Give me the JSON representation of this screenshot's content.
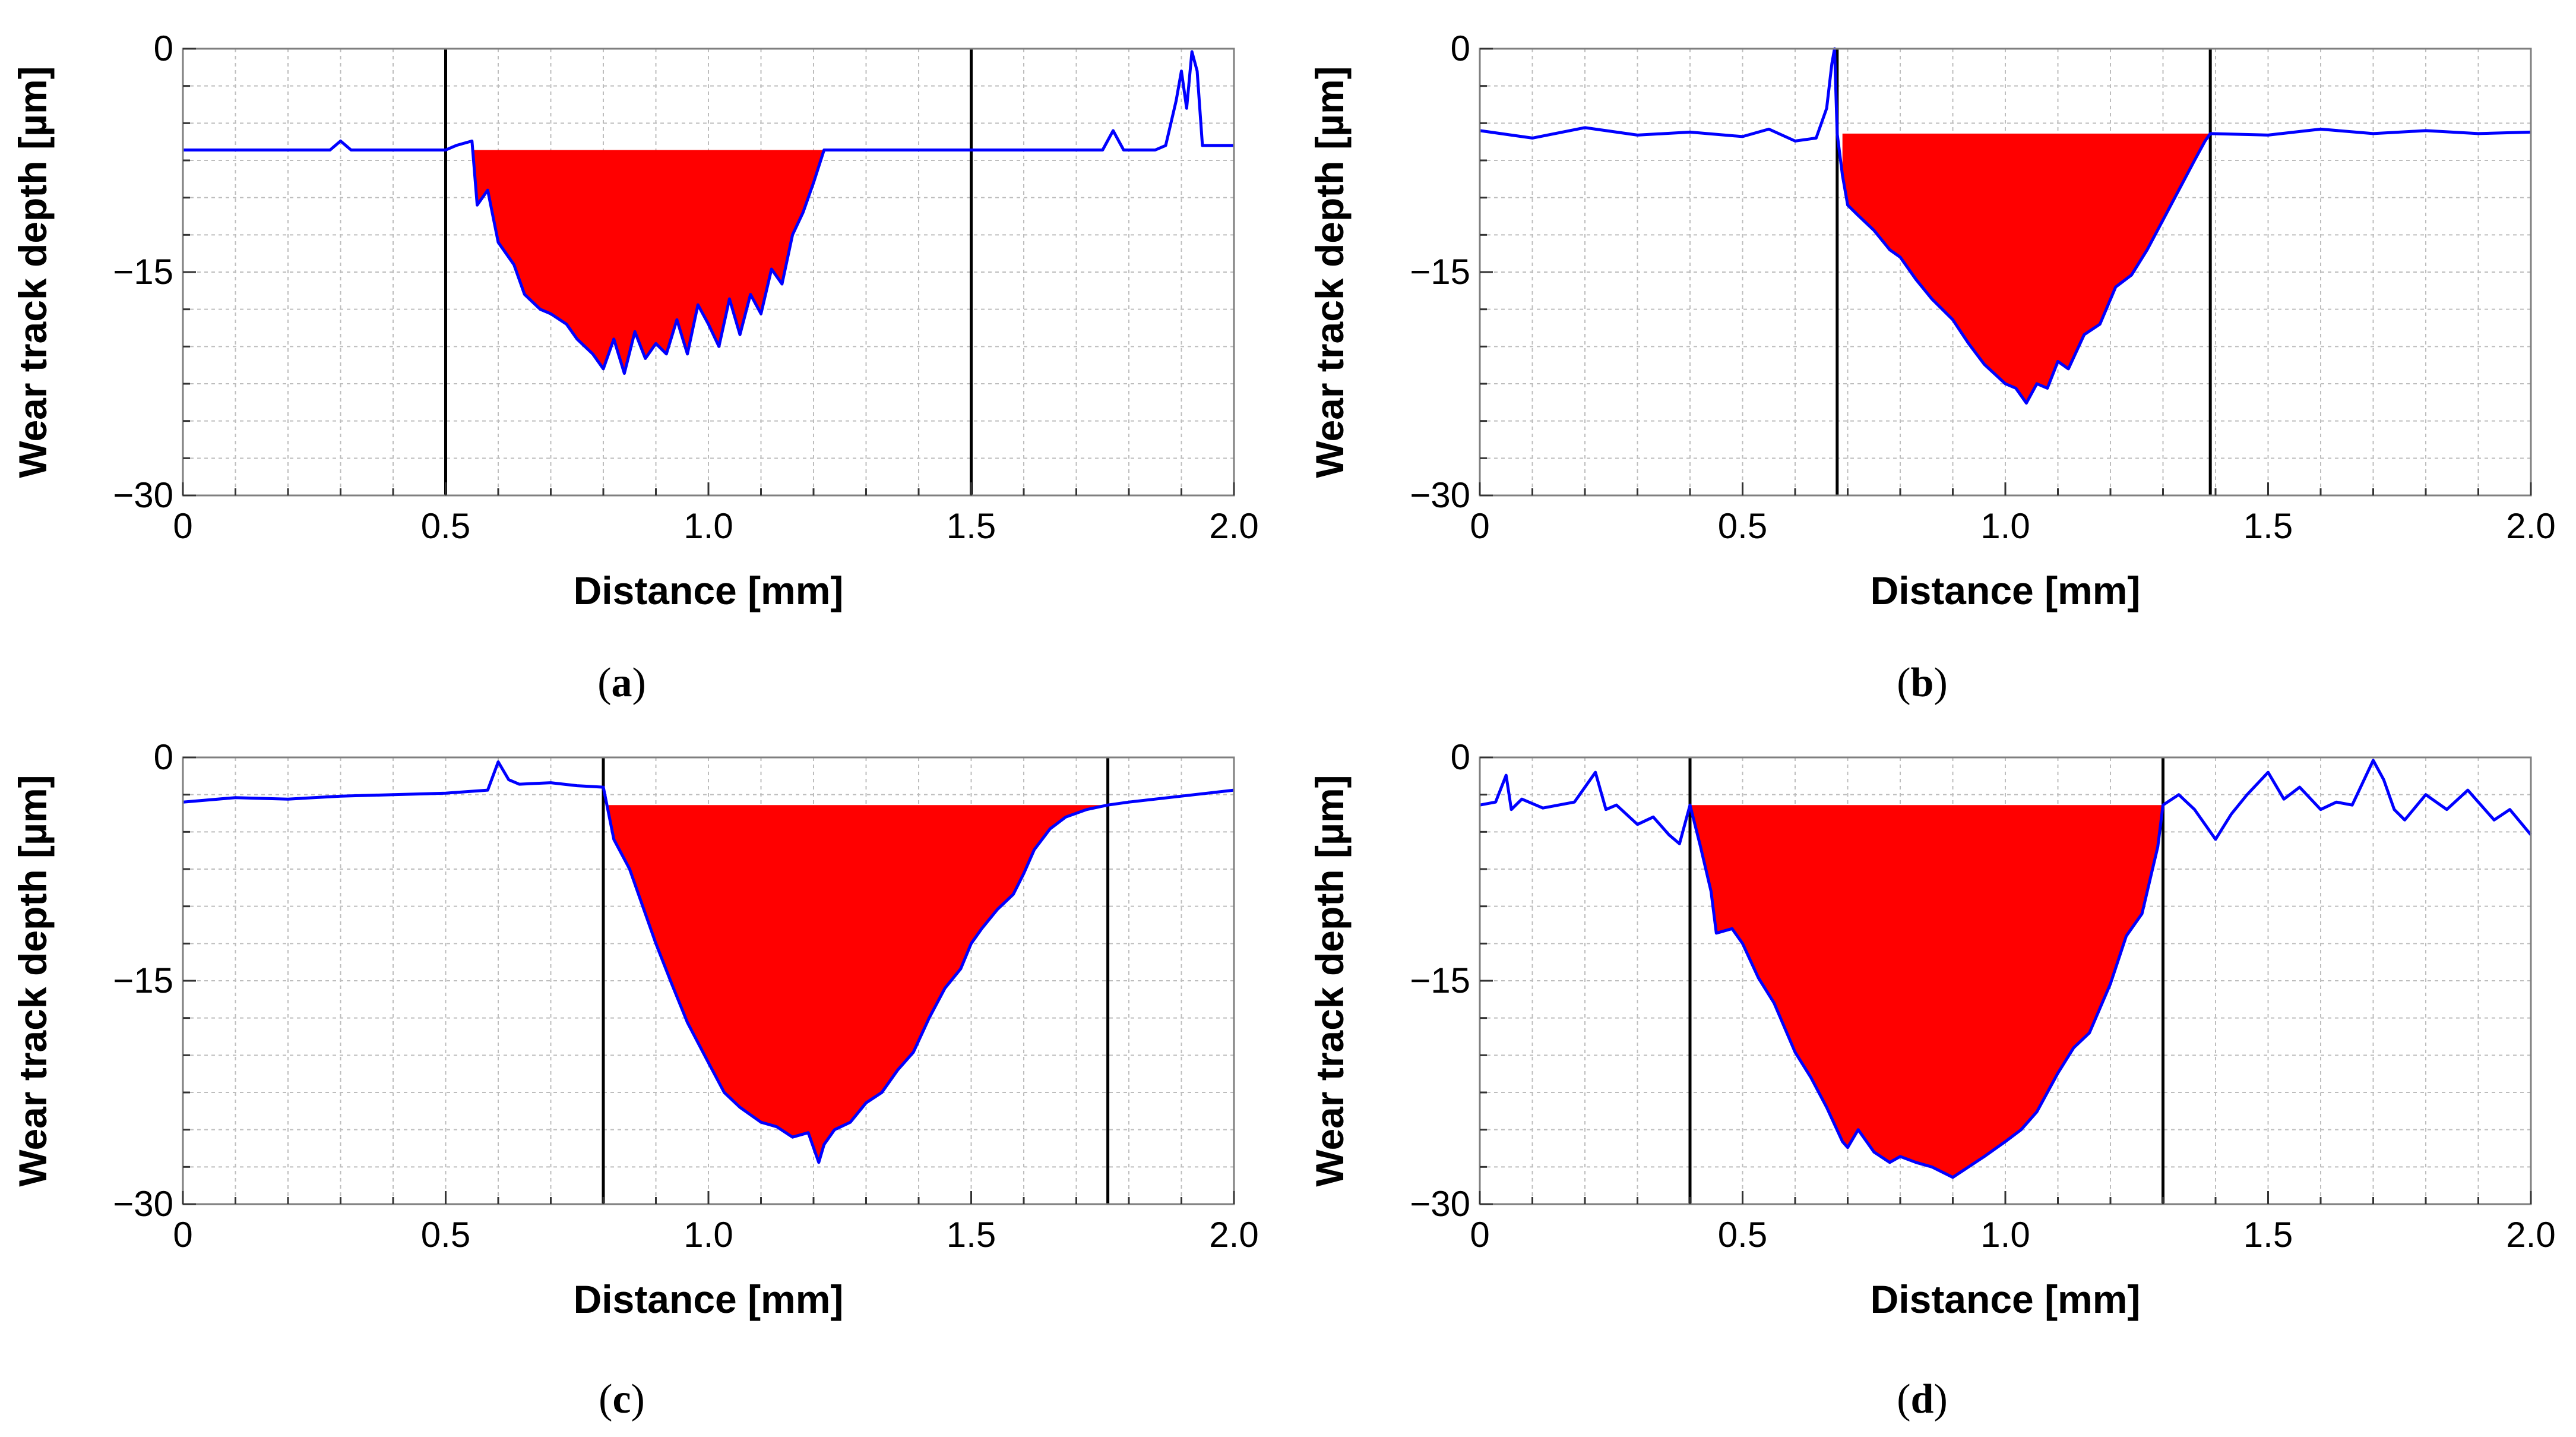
{
  "colors": {
    "profile": "#0000ff",
    "wear_area": "#ff0000",
    "marker": "#000000",
    "grid": "#bdbdbd",
    "frame": "#7f7f7f"
  },
  "chart_data": [
    {
      "type": "line",
      "panel_label": "(a)",
      "panel_label_parts": {
        "open": "(",
        "letter": "a",
        "close": ")"
      },
      "xlabel": "Distance [mm]",
      "ylabel": "Wear track depth [µm]",
      "xlim": [
        0,
        2.0
      ],
      "ylim": [
        -30,
        0
      ],
      "xticks": [
        "0",
        "0.5",
        "1.0",
        "1.5",
        "2.0"
      ],
      "yticks": [
        "0",
        "−15",
        "−30"
      ],
      "ytick_values": [
        0,
        -15,
        -30
      ],
      "baseline": -6.8,
      "markers": [
        0.5,
        1.5
      ],
      "profile": {
        "x": [
          0,
          0.28,
          0.3,
          0.32,
          0.5,
          0.52,
          0.55,
          0.56,
          0.58,
          0.6,
          0.63,
          0.65,
          0.68,
          0.7,
          0.73,
          0.75,
          0.78,
          0.8,
          0.82,
          0.84,
          0.86,
          0.88,
          0.9,
          0.92,
          0.94,
          0.96,
          0.98,
          1.0,
          1.02,
          1.04,
          1.06,
          1.08,
          1.1,
          1.12,
          1.14,
          1.16,
          1.18,
          1.2,
          1.22,
          1.25,
          1.5,
          1.75,
          1.77,
          1.79,
          1.85,
          1.87,
          1.89,
          1.9,
          1.91,
          1.92,
          1.93,
          1.94,
          2.0
        ],
        "y": [
          -6.8,
          -6.8,
          -6.2,
          -6.8,
          -6.8,
          -6.5,
          -6.2,
          -10.5,
          -9.5,
          -13,
          -14.5,
          -16.5,
          -17.5,
          -17.8,
          -18.5,
          -19.5,
          -20.5,
          -21.5,
          -19.5,
          -21.8,
          -19,
          -20.8,
          -19.8,
          -20.5,
          -18.2,
          -20.5,
          -17.2,
          -18.5,
          -20,
          -16.8,
          -19.2,
          -16.5,
          -17.8,
          -14.8,
          -15.8,
          -12.5,
          -11,
          -9,
          -6.8,
          -6.8,
          -6.8,
          -6.8,
          -5.5,
          -6.8,
          -6.8,
          -6.5,
          -3.5,
          -1.5,
          -4,
          -0.2,
          -1.5,
          -6.5,
          -6.5
        ]
      },
      "wear_region": [
        0.55,
        1.22
      ]
    },
    {
      "type": "line",
      "panel_label": "(b)",
      "panel_label_parts": {
        "open": "(",
        "letter": "b",
        "close": ")"
      },
      "xlabel": "Distance [mm]",
      "ylabel": "Wear track depth [µm]",
      "xlim": [
        0,
        2.0
      ],
      "ylim": [
        -30,
        0
      ],
      "xticks": [
        "0",
        "0.5",
        "1.0",
        "1.5",
        "2.0"
      ],
      "yticks": [
        "0",
        "−15",
        "−30"
      ],
      "ytick_values": [
        0,
        -15,
        -30
      ],
      "baseline": -5.7,
      "markers": [
        0.68,
        1.39
      ],
      "profile": {
        "x": [
          0,
          0.1,
          0.2,
          0.3,
          0.4,
          0.5,
          0.55,
          0.6,
          0.64,
          0.66,
          0.67,
          0.675,
          0.68,
          0.69,
          0.7,
          0.72,
          0.75,
          0.78,
          0.8,
          0.83,
          0.86,
          0.9,
          0.93,
          0.96,
          1.0,
          1.02,
          1.04,
          1.06,
          1.08,
          1.1,
          1.12,
          1.15,
          1.18,
          1.21,
          1.24,
          1.27,
          1.3,
          1.33,
          1.36,
          1.38,
          1.39,
          1.5,
          1.6,
          1.7,
          1.8,
          1.9,
          2.0
        ],
        "y": [
          -5.5,
          -6,
          -5.3,
          -5.8,
          -5.6,
          -5.9,
          -5.4,
          -6.2,
          -6,
          -4,
          -1,
          0,
          -5.7,
          -8.5,
          -10.5,
          -11.2,
          -12.2,
          -13.5,
          -14,
          -15.5,
          -16.8,
          -18.2,
          -19.8,
          -21.2,
          -22.5,
          -22.8,
          -23.8,
          -22.5,
          -22.8,
          -21,
          -21.5,
          -19.2,
          -18.5,
          -16,
          -15.2,
          -13.5,
          -11.5,
          -9.5,
          -7.5,
          -6.2,
          -5.7,
          -5.8,
          -5.4,
          -5.7,
          -5.5,
          -5.7,
          -5.6
        ]
      },
      "wear_region": [
        0.69,
        1.39
      ]
    },
    {
      "type": "line",
      "panel_label": "(c)",
      "panel_label_parts": {
        "open": "(",
        "letter": "c",
        "close": ")"
      },
      "xlabel": "Distance [mm]",
      "ylabel": "Wear track depth [µm]",
      "xlim": [
        0,
        2.0
      ],
      "ylim": [
        -30,
        0
      ],
      "xticks": [
        "0",
        "0.5",
        "1.0",
        "1.5",
        "2.0"
      ],
      "yticks": [
        "0",
        "−15",
        "−30"
      ],
      "ytick_values": [
        0,
        -15,
        -30
      ],
      "baseline": -3.2,
      "markers": [
        0.8,
        1.76
      ],
      "profile": {
        "x": [
          0,
          0.1,
          0.2,
          0.3,
          0.4,
          0.5,
          0.58,
          0.6,
          0.62,
          0.64,
          0.7,
          0.75,
          0.8,
          0.82,
          0.85,
          0.88,
          0.9,
          0.93,
          0.96,
          1.0,
          1.03,
          1.06,
          1.1,
          1.13,
          1.16,
          1.19,
          1.21,
          1.22,
          1.24,
          1.27,
          1.3,
          1.33,
          1.36,
          1.39,
          1.42,
          1.45,
          1.48,
          1.5,
          1.52,
          1.55,
          1.58,
          1.6,
          1.62,
          1.65,
          1.68,
          1.72,
          1.76,
          1.8,
          1.9,
          2.0
        ],
        "y": [
          -3,
          -2.7,
          -2.8,
          -2.6,
          -2.5,
          -2.4,
          -2.2,
          -0.3,
          -1.5,
          -1.8,
          -1.7,
          -1.9,
          -2,
          -5.5,
          -7.5,
          -10.5,
          -12.5,
          -15.2,
          -17.8,
          -20.5,
          -22.5,
          -23.5,
          -24.5,
          -24.8,
          -25.5,
          -25.2,
          -27.2,
          -26,
          -25,
          -24.5,
          -23.2,
          -22.5,
          -21,
          -19.8,
          -17.5,
          -15.5,
          -14.2,
          -12.5,
          -11.5,
          -10.2,
          -9.2,
          -7.8,
          -6.2,
          -4.8,
          -4,
          -3.5,
          -3.2,
          -3,
          -2.6,
          -2.2
        ]
      },
      "wear_region": [
        0.81,
        1.76
      ]
    },
    {
      "type": "line",
      "panel_label": "(d)",
      "panel_label_parts": {
        "open": "(",
        "letter": "d",
        "close": ")"
      },
      "xlabel": "Distance [mm]",
      "ylabel": "Wear track depth [µm]",
      "xlim": [
        0,
        2.0
      ],
      "ylim": [
        -30,
        0
      ],
      "xticks": [
        "0",
        "0.5",
        "1.0",
        "1.5",
        "2.0"
      ],
      "yticks": [
        "0",
        "−15",
        "−30"
      ],
      "ytick_values": [
        0,
        -15,
        -30
      ],
      "baseline": -3.2,
      "markers": [
        0.4,
        1.3
      ],
      "profile": {
        "x": [
          0,
          0.03,
          0.05,
          0.06,
          0.08,
          0.12,
          0.18,
          0.22,
          0.24,
          0.26,
          0.3,
          0.33,
          0.36,
          0.38,
          0.4,
          0.42,
          0.44,
          0.45,
          0.48,
          0.5,
          0.53,
          0.56,
          0.6,
          0.63,
          0.66,
          0.69,
          0.7,
          0.72,
          0.75,
          0.78,
          0.8,
          0.83,
          0.86,
          0.9,
          0.93,
          0.96,
          1.0,
          1.03,
          1.06,
          1.1,
          1.13,
          1.16,
          1.2,
          1.23,
          1.26,
          1.29,
          1.3,
          1.33,
          1.36,
          1.4,
          1.43,
          1.46,
          1.5,
          1.53,
          1.56,
          1.6,
          1.63,
          1.66,
          1.7,
          1.72,
          1.74,
          1.76,
          1.8,
          1.84,
          1.88,
          1.9,
          1.93,
          1.96,
          2.0
        ],
        "y": [
          -3.2,
          -3,
          -1.2,
          -3.5,
          -2.8,
          -3.4,
          -3,
          -1,
          -3.5,
          -3.2,
          -4.5,
          -4,
          -5.2,
          -5.8,
          -3.2,
          -6,
          -9,
          -11.8,
          -11.5,
          -12.5,
          -14.8,
          -16.5,
          -19.8,
          -21.5,
          -23.5,
          -25.8,
          -26.2,
          -25,
          -26.5,
          -27.2,
          -26.8,
          -27.2,
          -27.5,
          -28.2,
          -27.5,
          -26.8,
          -25.8,
          -25,
          -23.8,
          -21.2,
          -19.5,
          -18.5,
          -15.2,
          -12,
          -10.5,
          -6,
          -3.2,
          -2.5,
          -3.5,
          -5.5,
          -3.8,
          -2.5,
          -1,
          -2.8,
          -2,
          -3.5,
          -3,
          -3.2,
          -0.2,
          -1.5,
          -3.5,
          -4.2,
          -2.5,
          -3.5,
          -2.2,
          -3,
          -4.2,
          -3.5,
          -5.2
        ]
      },
      "wear_region": [
        0.4,
        1.3
      ]
    }
  ]
}
